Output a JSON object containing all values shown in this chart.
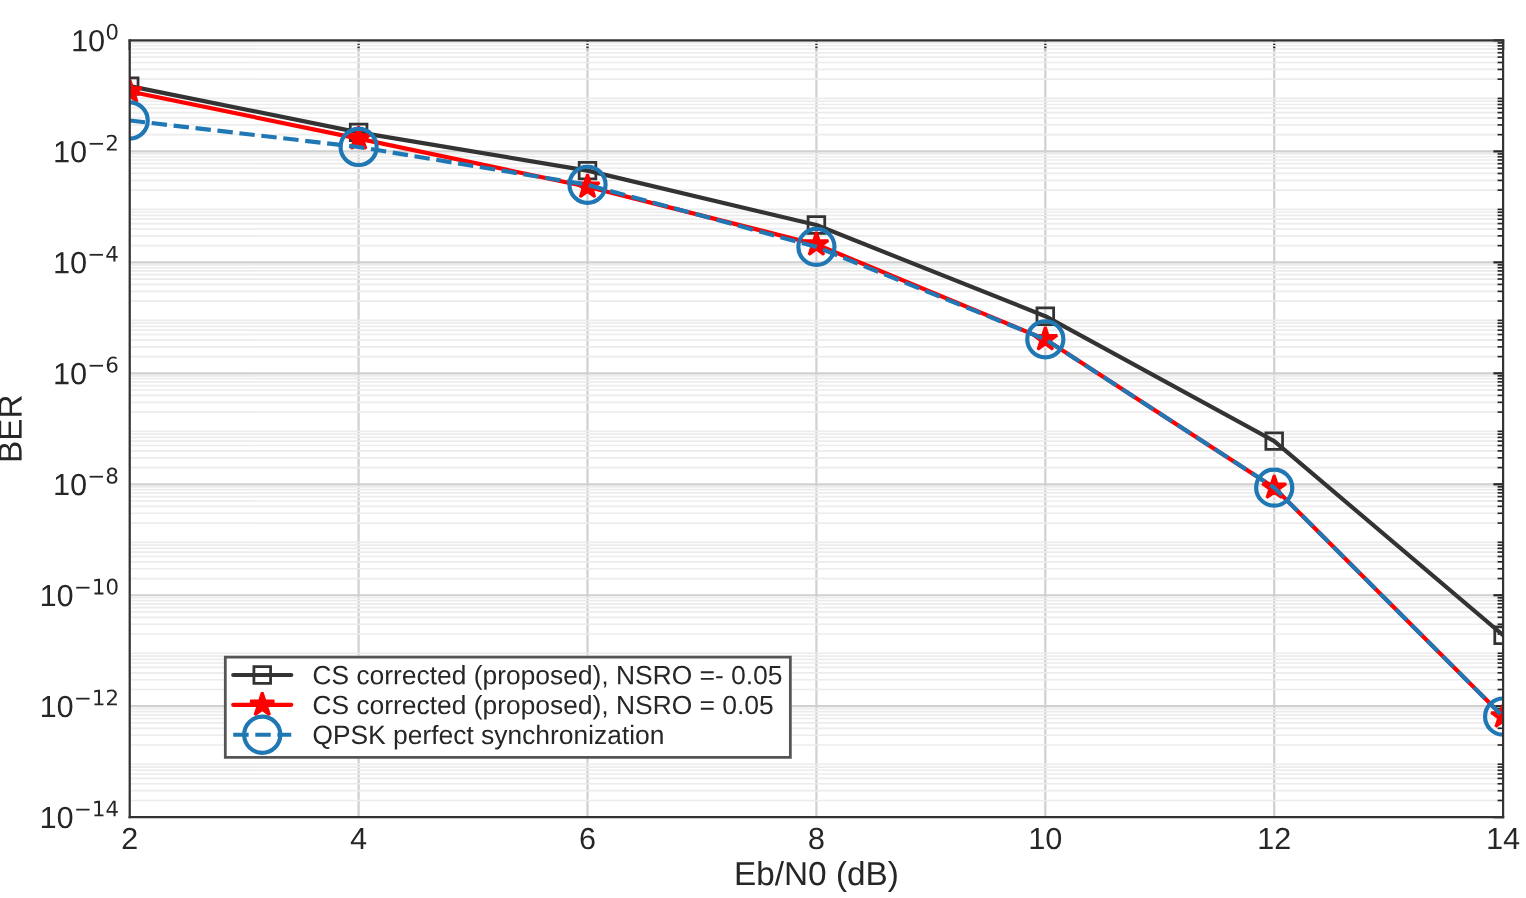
{
  "chart_data": {
    "type": "line",
    "xlabel": "Eb/N0 (dB)",
    "ylabel": "BER",
    "x": [
      2,
      4,
      6,
      8,
      10,
      12,
      14
    ],
    "series": [
      {
        "name": "CS corrected (proposed), NSRO =- 0.05",
        "color": "#333333",
        "marker": "square",
        "line_style": "solid",
        "values": [
          0.15,
          0.022,
          0.0045,
          0.00047,
          1.07e-05,
          6e-08,
          1.9e-11
        ]
      },
      {
        "name": "CS corrected (proposed), NSRO = 0.05",
        "color": "#ff0000",
        "marker": "star",
        "line_style": "solid",
        "values": [
          0.12,
          0.017,
          0.0023,
          0.00021,
          4.1e-06,
          8.7e-09,
          6.5e-13
        ]
      },
      {
        "name": "QPSK perfect synchronization",
        "color": "#1f77b4",
        "marker": "circle",
        "line_style": "dashed",
        "values": [
          0.036,
          0.012,
          0.0025,
          0.00019,
          4.1e-06,
          8.7e-09,
          6.5e-13
        ]
      }
    ],
    "log": "y",
    "xlim": [
      2,
      14
    ],
    "xticks": [
      2,
      4,
      6,
      8,
      10,
      12,
      14
    ],
    "ylim": [
      1e-14,
      1
    ],
    "yticks": [
      {
        "value": 1e-14,
        "label": "10$^{−14}$"
      },
      {
        "value": 1e-12,
        "label": "10$^{−12}$"
      },
      {
        "value": 1e-10,
        "label": "10$^{−10}$"
      },
      {
        "value": 1e-08,
        "label": "10$^{−8}$"
      },
      {
        "value": 1e-06,
        "label": "10$^{−6}$"
      },
      {
        "value": 0.0001,
        "label": "10$^{−4}$"
      },
      {
        "value": 0.01,
        "label": "10$^{−2}$"
      },
      {
        "value": 1,
        "label": "10$^{0}$"
      }
    ],
    "grid": true,
    "legend": "bottom left"
  }
}
